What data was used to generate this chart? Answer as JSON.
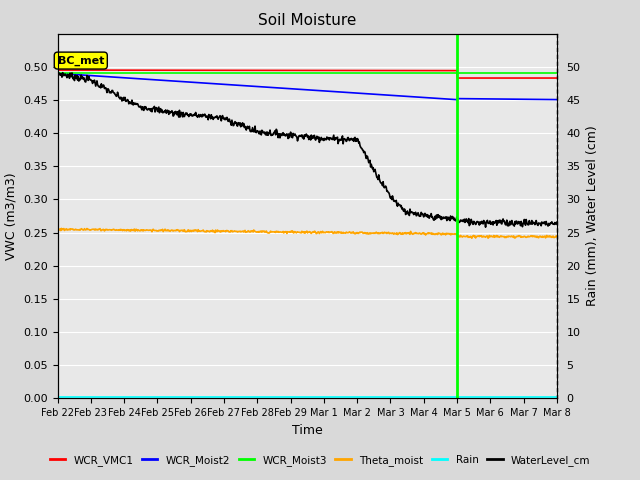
{
  "title": "Soil Moisture",
  "xlabel": "Time",
  "ylabel_left": "VWC (m3/m3)",
  "ylabel_right": "Rain (mm), Water Level (cm)",
  "ylim_left": [
    0.0,
    0.55
  ],
  "ylim_right": [
    0,
    55
  ],
  "annotation_label": "BC_met",
  "background_color": "#d9d9d9",
  "plot_bg_color": "#e8e8e8",
  "tick_labels": [
    "Feb 22",
    "Feb 23",
    "Feb 24",
    "Feb 25",
    "Feb 26",
    "Feb 27",
    "Feb 28",
    "Feb 29",
    "Mar 1",
    "Mar 2",
    "Mar 3",
    "Mar 4",
    "Mar 5",
    "Mar 6",
    "Mar 7",
    "Mar 8"
  ],
  "legend_items": [
    {
      "label": "WCR_VMC1",
      "color": "red"
    },
    {
      "label": "WCR_Moist2",
      "color": "blue"
    },
    {
      "label": "WCR_Moist3",
      "color": "lime"
    },
    {
      "label": "Theta_moist",
      "color": "orange"
    },
    {
      "label": "Rain",
      "color": "cyan"
    },
    {
      "label": "WaterLevel_cm",
      "color": "black"
    }
  ]
}
